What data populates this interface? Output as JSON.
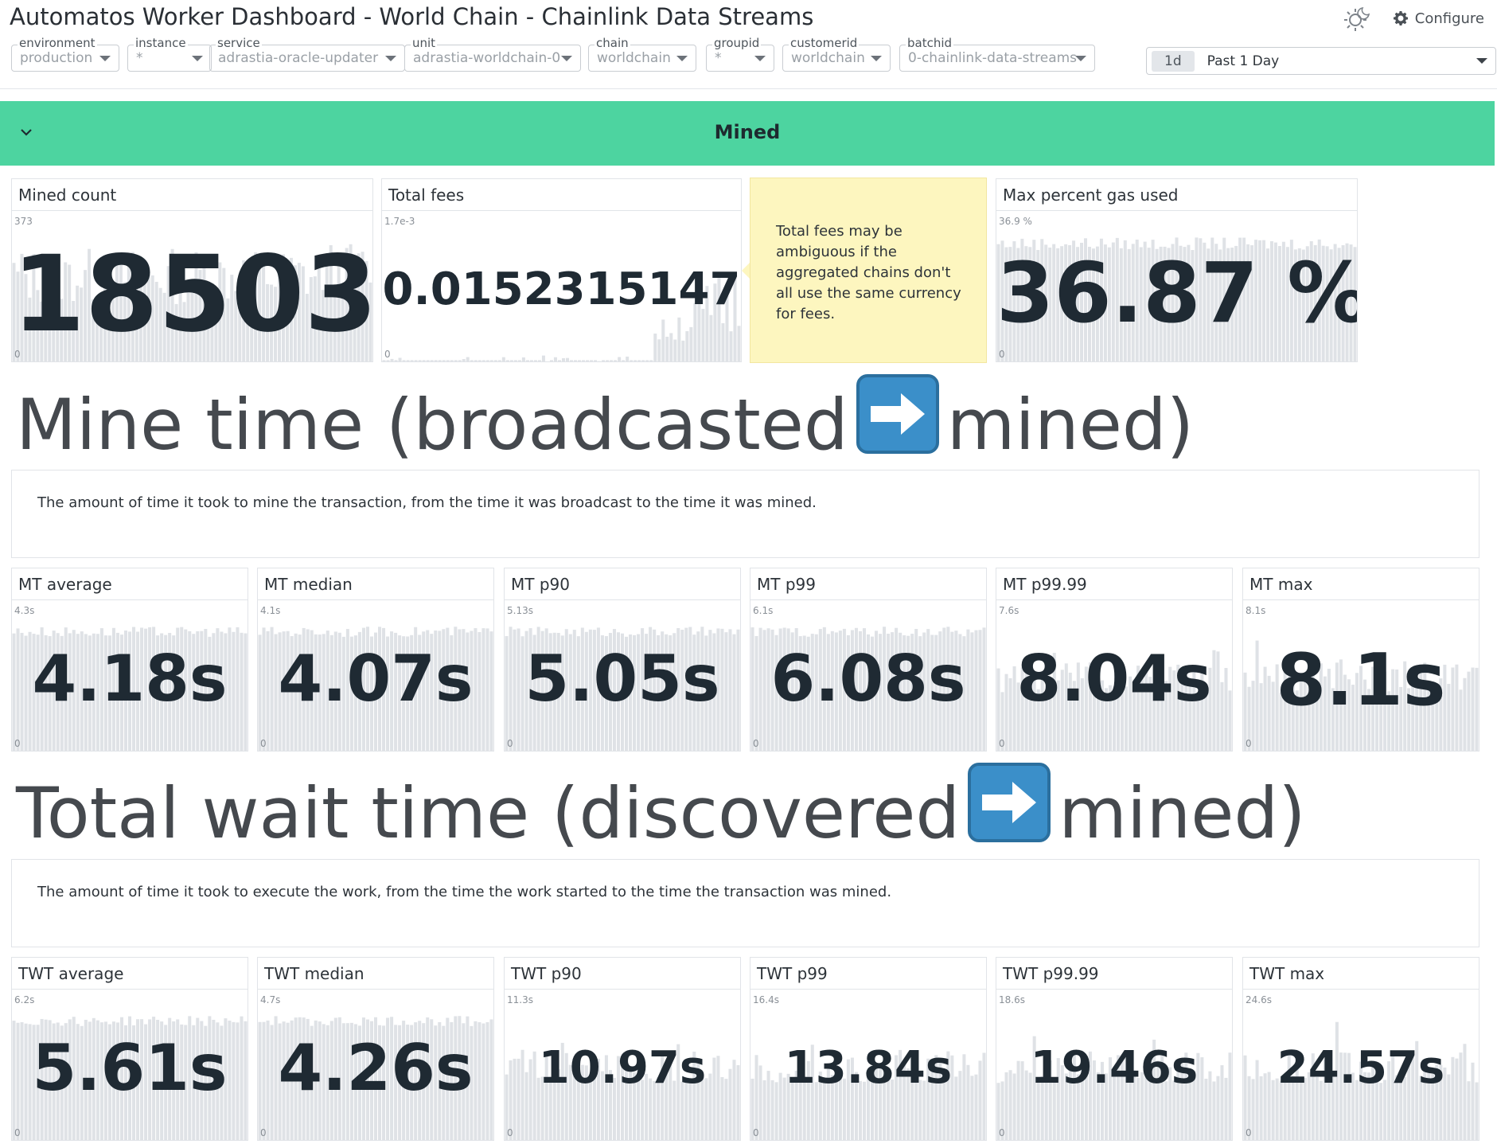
{
  "title": "Automatos Worker Dashboard - World Chain - Chainlink Data Streams",
  "configure_label": "Configure",
  "variables": [
    {
      "label": "environment",
      "value": "production"
    },
    {
      "label": "instance",
      "value": "*"
    },
    {
      "label": "service",
      "value": "adrastia-oracle-updater"
    },
    {
      "label": "unit",
      "value": "adrastia-worldchain-0"
    },
    {
      "label": "chain",
      "value": "worldchain"
    },
    {
      "label": "groupid",
      "value": "*"
    },
    {
      "label": "customerid",
      "value": "worldchain"
    },
    {
      "label": "batchid",
      "value": "0-chainlink-data-streams"
    }
  ],
  "time_picker": {
    "badge": "1d",
    "label": "Past 1 Day"
  },
  "group": {
    "title": "Mined"
  },
  "mined_widgets": {
    "mined_count": {
      "title": "Mined count",
      "axis_max": "373",
      "axis_min": "0",
      "value": "18503"
    },
    "total_fees": {
      "title": "Total fees",
      "axis_max": "1.7e-3",
      "axis_min": "0",
      "value": "0.0152315147"
    },
    "max_gas": {
      "title": "Max percent gas used",
      "axis_max": "36.9 %",
      "axis_min": "0",
      "value": "36.87 %"
    }
  },
  "note": {
    "text": "Total fees may be ambiguous if the aggregated chains don't all use the same currency for fees."
  },
  "mine_time": {
    "heading_start": "Mine time (broadcasted",
    "heading_end": "mined)",
    "description": "The amount of time it took to mine the transaction, from the time it was broadcast to the time it was mined.",
    "widgets": [
      {
        "title": "MT average",
        "axis_max": "4.3s",
        "axis_min": "0",
        "value": "4.18s"
      },
      {
        "title": "MT median",
        "axis_max": "4.1s",
        "axis_min": "0",
        "value": "4.07s"
      },
      {
        "title": "MT p90",
        "axis_max": "5.13s",
        "axis_min": "0",
        "value": "5.05s"
      },
      {
        "title": "MT p99",
        "axis_max": "6.1s",
        "axis_min": "0",
        "value": "6.08s"
      },
      {
        "title": "MT p99.99",
        "axis_max": "7.6s",
        "axis_min": "0",
        "value": "8.04s"
      },
      {
        "title": "MT max",
        "axis_max": "8.1s",
        "axis_min": "0",
        "value": "8.1s"
      }
    ]
  },
  "total_wait_time": {
    "heading_start": "Total wait time (discovered",
    "heading_end": "mined)",
    "description": "The amount of time it took to execute the work, from the time the work started to the time the transaction was mined.",
    "widgets": [
      {
        "title": "TWT average",
        "axis_max": "6.2s",
        "axis_min": "0",
        "value": "5.61s"
      },
      {
        "title": "TWT median",
        "axis_max": "4.7s",
        "axis_min": "0",
        "value": "4.26s"
      },
      {
        "title": "TWT p90",
        "axis_max": "11.3s",
        "axis_min": "0",
        "value": "10.97s"
      },
      {
        "title": "TWT p99",
        "axis_max": "16.4s",
        "axis_min": "0",
        "value": "13.84s"
      },
      {
        "title": "TWT p99.99",
        "axis_max": "18.6s",
        "axis_min": "0",
        "value": "19.46s"
      },
      {
        "title": "TWT max",
        "axis_max": "24.6s",
        "axis_min": "0",
        "value": "24.57s"
      }
    ]
  },
  "colors": {
    "accent": "#4dd4a0",
    "note_bg": "#fdf6bf",
    "spark_bar": "#dfe2e6",
    "value_text": "#1f2a33"
  }
}
